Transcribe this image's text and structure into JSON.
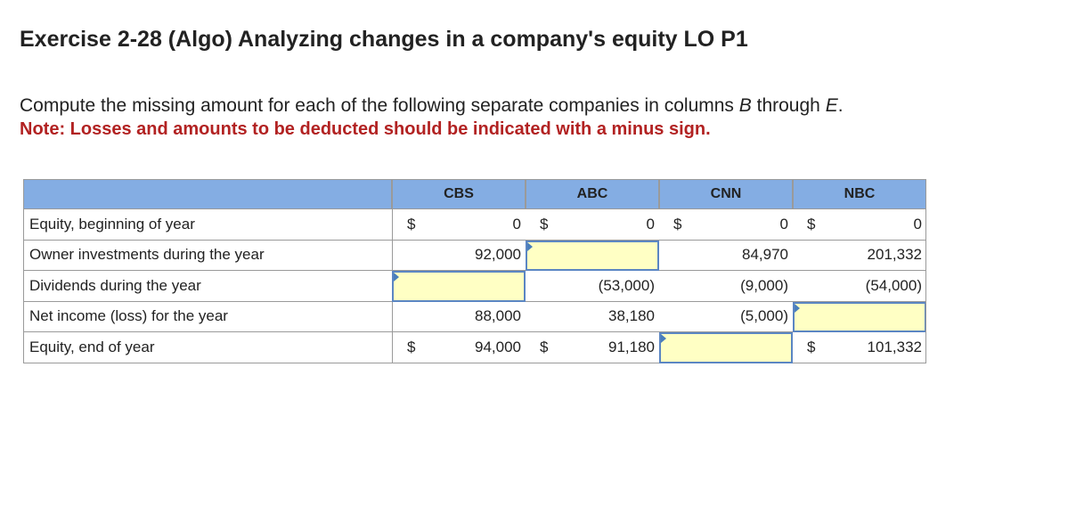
{
  "header": {
    "title": "Exercise 2-28 (Algo) Analyzing changes in a company's equity LO P1"
  },
  "instruction": {
    "lead": "Compute the missing amount for each of the following separate companies in columns ",
    "from": "B",
    "joiner": " through ",
    "to": "E",
    "tail": "."
  },
  "note": "Note: Losses and amounts to be deducted should be indicated with a minus sign.",
  "table": {
    "columns": [
      "CBS",
      "ABC",
      "CNN",
      "NBC"
    ],
    "rows": [
      {
        "label": "Equity, beginning of year",
        "cells": [
          {
            "currency": "$",
            "amount": "0"
          },
          {
            "currency": "$",
            "amount": "0"
          },
          {
            "currency": "$",
            "amount": "0"
          },
          {
            "currency": "$",
            "amount": "0"
          }
        ]
      },
      {
        "label": "Owner investments during the year",
        "cells": [
          {
            "amount": "92,000"
          },
          null,
          {
            "amount": "84,970"
          },
          {
            "amount": "201,332"
          }
        ]
      },
      {
        "label": "Dividends during the year",
        "cells": [
          null,
          {
            "amount": "(53,000)"
          },
          {
            "amount": "(9,000)"
          },
          {
            "amount": "(54,000)"
          }
        ]
      },
      {
        "label": "Net income (loss) for the year",
        "cells": [
          {
            "amount": "88,000"
          },
          {
            "amount": "38,180"
          },
          {
            "amount": "(5,000)"
          },
          null
        ]
      },
      {
        "label": "Equity, end of year",
        "cells": [
          {
            "currency": "$",
            "amount": "94,000"
          },
          {
            "currency": "$",
            "amount": "91,180"
          },
          null,
          {
            "currency": "$",
            "amount": "101,332"
          }
        ]
      }
    ]
  }
}
